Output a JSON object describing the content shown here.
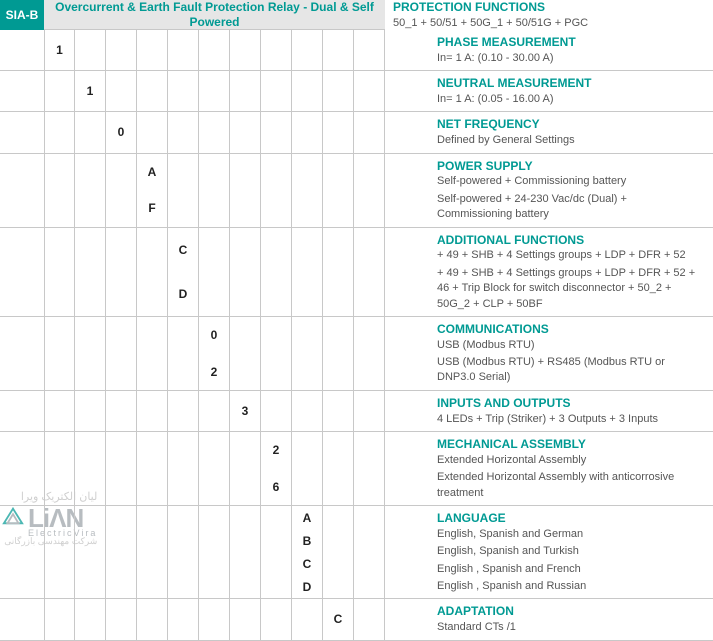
{
  "colors": {
    "teal": "#009a93",
    "border": "#c8c8c8",
    "muted": "#555555"
  },
  "header": {
    "badge": "SIA-B",
    "title": "Overcurrent & Earth Fault Protection Relay  - Dual & Self Powered"
  },
  "sections": [
    {
      "cells": [
        "",
        "",
        "",
        "",
        "",
        "",
        "",
        "",
        "",
        "",
        ""
      ],
      "title": "PROTECTION FUNCTIONS",
      "values": [
        "50_1 + 50/51 + 50G_1 + 50/51G +  PGC"
      ],
      "h": "1"
    },
    {
      "cells": [
        "1",
        "",
        "",
        "",
        "",
        "",
        "",
        "",
        "",
        "",
        ""
      ],
      "title": "PHASE MEASUREMENT",
      "values": [
        "In= 1 A: (0.10 - 30.00 A)"
      ],
      "h": "1"
    },
    {
      "cells": [
        "",
        "1",
        "",
        "",
        "",
        "",
        "",
        "",
        "",
        "",
        ""
      ],
      "title": "NEUTRAL MEASUREMENT",
      "values": [
        "In= 1 A: (0.05 - 16.00 A)"
      ],
      "h": "1"
    },
    {
      "cells": [
        "",
        "",
        "0",
        "",
        "",
        "",
        "",
        "",
        "",
        "",
        ""
      ],
      "title": "NET FREQUENCY",
      "values": [
        "Defined by General Settings"
      ],
      "h": "1"
    },
    {
      "cells": [
        "",
        "",
        "",
        "A\nF",
        "",
        "",
        "",
        "",
        "",
        "",
        ""
      ],
      "title": "POWER SUPPLY",
      "values": [
        "Self-powered + Commissioning battery",
        "Self-powered + 24-230 Vac/dc (Dual) + Commissioning battery"
      ],
      "h": "2"
    },
    {
      "cells": [
        "",
        "",
        "",
        "",
        "C\nD",
        "",
        "",
        "",
        "",
        "",
        ""
      ],
      "title": "ADDITIONAL FUNCTIONS",
      "values": [
        "+ 49 + SHB + 4 Settings groups + LDP + DFR + 52",
        "+ 49 + SHB + 4 Settings groups + LDP + DFR + 52 + 46 + Trip Block for switch disconnector + 50_2 + 50G_2 + CLP + 50BF"
      ],
      "h": "3"
    },
    {
      "cells": [
        "",
        "",
        "",
        "",
        "",
        "0\n2",
        "",
        "",
        "",
        "",
        ""
      ],
      "title": "COMMUNICATIONS",
      "values": [
        "USB (Modbus RTU)",
        "USB (Modbus RTU) + RS485 (Modbus RTU or DNP3.0 Serial)"
      ],
      "h": "2"
    },
    {
      "cells": [
        "",
        "",
        "",
        "",
        "",
        "",
        "3",
        "",
        "",
        "",
        ""
      ],
      "title": "INPUTS AND OUTPUTS",
      "values": [
        "4 LEDs + Trip (Striker) + 3 Outputs + 3 Inputs"
      ],
      "h": "1"
    },
    {
      "cells": [
        "",
        "",
        "",
        "",
        "",
        "",
        "",
        "2\n6",
        "",
        "",
        ""
      ],
      "title": "MECHANICAL ASSEMBLY",
      "values": [
        "Extended Horizontal Assembly",
        "Extended Horizontal Assembly with anticorrosive treatment"
      ],
      "h": "2"
    },
    {
      "cells": [
        "",
        "",
        "",
        "",
        "",
        "",
        "",
        "",
        "A\nB\nC\nD",
        "",
        ""
      ],
      "title": "LANGUAGE",
      "values": [
        "English, Spanish and German",
        "English, Spanish and Turkish",
        "English , Spanish and French",
        "English , Spanish and Russian"
      ],
      "h": "3"
    },
    {
      "cells": [
        "",
        "",
        "",
        "",
        "",
        "",
        "",
        "",
        "",
        "C",
        ""
      ],
      "title": "ADAPTATION",
      "values": [
        "Standard CTs /1"
      ],
      "h": "1"
    }
  ],
  "watermark": {
    "line1": "ليان الكتريک ويرا",
    "brand_big": "LiΛN",
    "brand_sub": "ElectricVira",
    "line2": "شرکت مهندسی بازرگانی"
  }
}
